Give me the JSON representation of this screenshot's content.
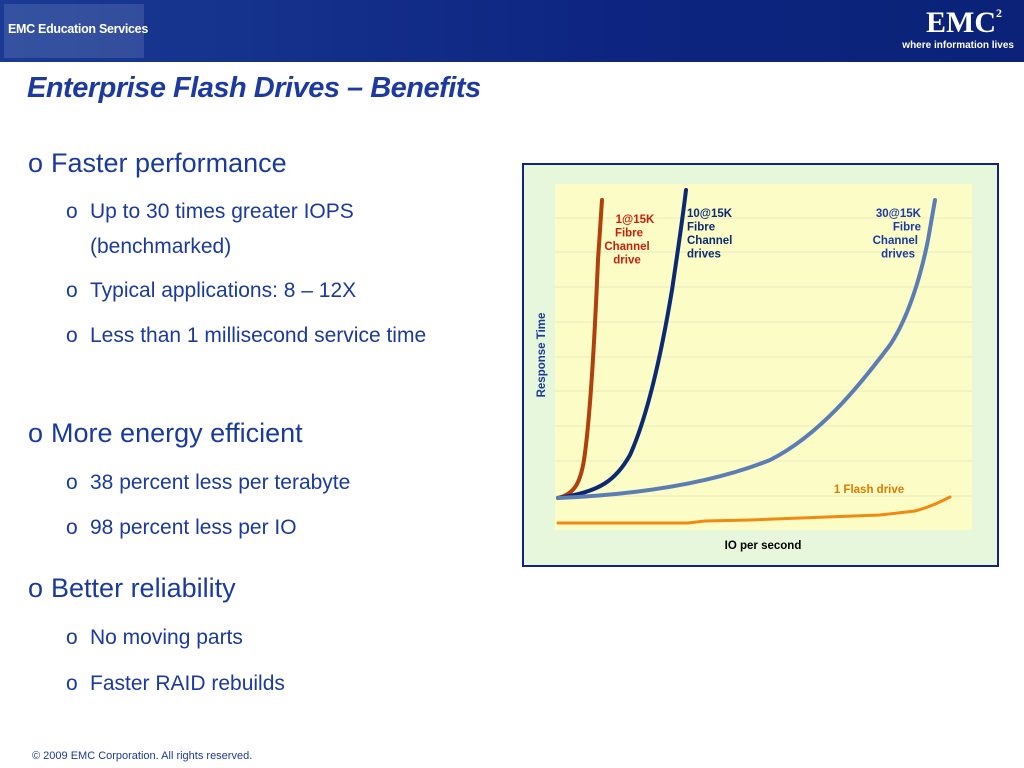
{
  "header": {
    "logo_text": "EMC Education Services",
    "brand": "EMC",
    "brand_sup": "2",
    "tagline": "where information lives"
  },
  "title": "Enterprise Flash Drives – Benefits",
  "bullets": [
    {
      "marker": "o",
      "text": "Faster performance",
      "items": [
        {
          "marker": "o",
          "text": "Up to 30 times greater IOPS (benchmarked)"
        },
        {
          "marker": "o",
          "text": "Typical applications: 8 – 12X"
        },
        {
          "marker": "o",
          "text": "Less than 1 millisecond service time"
        }
      ]
    },
    {
      "marker": "o",
      "text": "More energy efficient",
      "items": [
        {
          "marker": "o",
          "text": "38 percent less per terabyte"
        },
        {
          "marker": "o",
          "text": "98 percent less per IO"
        }
      ]
    },
    {
      "marker": "o",
      "text": "Better reliability",
      "items": [
        {
          "marker": "o",
          "text": "No moving parts"
        },
        {
          "marker": "o",
          "text": "Faster RAID rebuilds"
        }
      ]
    }
  ],
  "diagram": {
    "y_label": "Response Time",
    "x_label": "IO per second",
    "curve_labels": [
      {
        "lines": [
          "1@15K",
          "Fibre",
          "Channel",
          "drive"
        ]
      },
      {
        "lines": [
          "10@15K",
          "Fibre",
          "Channel",
          "drives"
        ]
      },
      {
        "lines": [
          "30@15K",
          "Fibre",
          "Channel",
          "drives"
        ]
      },
      {
        "lines": [
          "1 Flash drive"
        ]
      }
    ]
  },
  "footer": "© 2009 EMC Corporation. All rights reserved."
}
